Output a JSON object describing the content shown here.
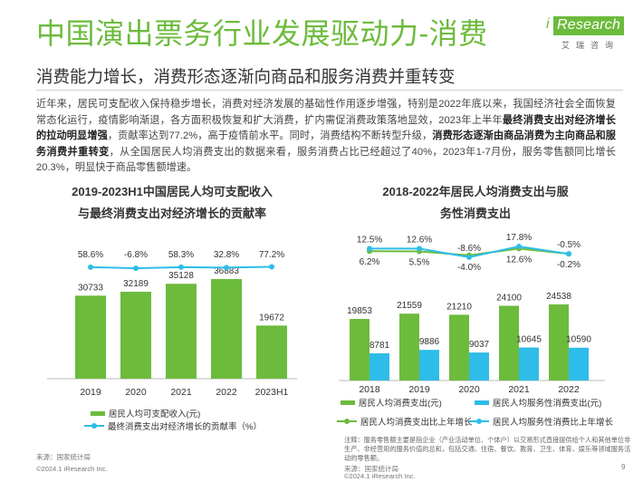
{
  "header": {
    "title": "中国演出票务行业发展驱动力-消费",
    "subtitle": "消费能力增长，消费形态逐渐向商品和服务消费并重转变",
    "logo_text": "Research",
    "logo_i": "i",
    "logo_sub": "艾瑞咨询"
  },
  "body": {
    "p1": "近年来，居民可支配收入保持稳步增长，消费对经济发展的基础性作用逐步增强，特别是2022年底以来，我国经济社会全面恢复常态化运行，疫情影响渐退，各方面积极恢复和扩大消费，扩内需促消费政策落地显效，2023年上半年",
    "b1": "最终消费支出对经济增长的拉动明显增强",
    "p2": "，贡献率达到77.2%，高于疫情前水平。同时，消费结构不断转型升级，",
    "b2": "消费形态逐渐由商品消费为主向商品和服务消费并重转变",
    "p3": "，从全国居民人均消费支出的数据来看，服务消费占比已经超过了40%，2023年1-7月份，服务零售额同比增长20.3%，明显快于商品零售额增速。"
  },
  "left_chart": {
    "title_line1": "2019-2023H1中国居民人均可支配收入",
    "title_line2": "与最终消费支出对经济增长的贡献率",
    "legend_bar": "居民人均可支配收入(元)",
    "legend_line": "最终消费支出对经济增长的贡献率（%）",
    "source": "来源：国家统计局",
    "footer": "©2024.1 iResearch Inc."
  },
  "right_chart": {
    "title_line1": "2018-2022年居民人均消费支出与服",
    "title_line2": "务性消费支出",
    "legend_bar1": "居民人均消费支出(元)",
    "legend_bar2": "居民人均服务性消费支出(元)",
    "legend_line1": "居民人均消费支出比上年增长",
    "legend_line2": "居民人均服务性消费比上年增长",
    "note": "注释：服务零售额主要是指企业（产业活动单位、个体户）以交易形式直接提供给个人和其他单位非生产、非经营用的服务价值的总和，包括交通、住宿、餐饮、教育、卫生、体育、娱乐等领域服务活动的零售额。",
    "source": "来源：国家统计局",
    "footer": "©2024.1 iResearch Inc."
  },
  "page_number": "9",
  "colors": {
    "green": "#6cbb3c",
    "blue": "#2ebde8"
  },
  "chart_data": [
    {
      "type": "bar",
      "categories": [
        "2019",
        "2020",
        "2021",
        "2022",
        "2023H1"
      ],
      "series": [
        {
          "name": "居民人均可支配收入(元)",
          "type": "bar",
          "values": [
            30733,
            32189,
            35128,
            36883,
            19672
          ],
          "labels": [
            "30733",
            "32189",
            "35128",
            "36883",
            "19672"
          ]
        },
        {
          "name": "最终消费支出对经济增长的贡献率（%）",
          "type": "line",
          "values": [
            58.6,
            -6.8,
            58.3,
            32.8,
            77.2
          ],
          "labels": [
            "58.6%",
            "-6.8%",
            "58.3%",
            "32.8%",
            "77.2%"
          ]
        }
      ]
    },
    {
      "type": "bar",
      "categories": [
        "2018",
        "2019",
        "2020",
        "2021",
        "2022"
      ],
      "series": [
        {
          "name": "居民人均消费支出(元)",
          "type": "bar",
          "values": [
            19853,
            21559,
            21210,
            24100,
            24538
          ],
          "labels": [
            "19853",
            "21559",
            "21210",
            "24100",
            "24538"
          ]
        },
        {
          "name": "居民人均服务性消费支出(元)",
          "type": "bar",
          "values": [
            8781,
            9886,
            9037,
            10645,
            10590
          ],
          "labels": [
            "8781",
            "9886",
            "9037",
            "10645",
            "10590"
          ]
        },
        {
          "name": "居民人均消费支出比上年增长",
          "type": "line",
          "values": [
            6.2,
            5.5,
            -4.0,
            12.6,
            -0.2
          ],
          "labels": [
            "6.2%",
            "5.5%",
            "-4.0%",
            "12.6%",
            "-0.2%"
          ]
        },
        {
          "name": "居民人均服务性消费比上年增长",
          "type": "line",
          "values": [
            12.5,
            12.6,
            -8.6,
            17.8,
            -0.5
          ],
          "labels": [
            "12.5%",
            "12.6%",
            "-8.6%",
            "17.8%",
            "-0.5%"
          ]
        }
      ]
    }
  ]
}
